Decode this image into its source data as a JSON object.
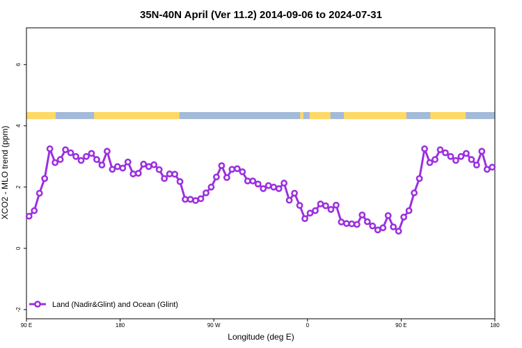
{
  "chart_data": {
    "type": "line",
    "title": "35N-40N April (Ver 11.2)   2014-09-06 to 2024-07-31",
    "xlabel": "Longitude (deg E)",
    "ylabel": "XCO2 - MLO trend (ppm)",
    "xlim": [
      90,
      540
    ],
    "ylim": [
      -2.3,
      7.2
    ],
    "xticks": [
      {
        "value": 90,
        "label": "90 E"
      },
      {
        "value": 180,
        "label": "180"
      },
      {
        "value": 270,
        "label": "90 W"
      },
      {
        "value": 360,
        "label": "0"
      },
      {
        "value": 450,
        "label": "90 E"
      },
      {
        "value": 540,
        "label": "180"
      }
    ],
    "yticks": [
      {
        "value": -2,
        "label": "-2"
      },
      {
        "value": 0,
        "label": "0"
      },
      {
        "value": 2,
        "label": "2"
      },
      {
        "value": 4,
        "label": "4"
      },
      {
        "value": 6,
        "label": "6"
      }
    ],
    "grid": false,
    "legend_position": "bottom-left",
    "land_ocean_strip": {
      "y_range": [
        4.22,
        4.45
      ],
      "land_color": "#ffd966",
      "ocean_color": "#a3bad8",
      "land_segments": [
        [
          90,
          118
        ],
        [
          155,
          237
        ],
        [
          353,
          356
        ],
        [
          362,
          382
        ],
        [
          395,
          455
        ],
        [
          478,
          512
        ]
      ],
      "series": [
        {
          "name": "Land (Nadir&Glint) and Ocean (Glint)",
          "color": "#9b30e0",
          "x": [
            92.5,
            97.5,
            102.5,
            107.5,
            112.5,
            117.5,
            122.5,
            127.5,
            132.5,
            137.5,
            142.5,
            147.5,
            152.5,
            157.5,
            162.5,
            167.5,
            172.5,
            177.5,
            182.5,
            187.5,
            192.5,
            197.5,
            202.5,
            207.5,
            212.5,
            217.5,
            222.5,
            227.5,
            232.5,
            237.5,
            242.5,
            247.5,
            252.5,
            257.5,
            262.5,
            267.5,
            272.5,
            277.5,
            282.5,
            287.5,
            292.5,
            297.5,
            302.5,
            307.5,
            312.5,
            317.5,
            322.5,
            327.5,
            332.5,
            337.5,
            342.5,
            347.5,
            352.5,
            357.5,
            362.5,
            367.5,
            372.5,
            377.5,
            382.5,
            387.5,
            392.5,
            397.5,
            402.5,
            407.5,
            412.5,
            417.5,
            422.5,
            427.5,
            432.5,
            437.5,
            442.5,
            447.5,
            452.5,
            457.5,
            462.5,
            467.5,
            472.5,
            477.5,
            482.5,
            487.5,
            492.5,
            497.5,
            502.5,
            507.5,
            512.5,
            517.5,
            522.5,
            527.5,
            532.5,
            537.5
          ],
          "values": [
            1.05,
            1.23,
            1.8,
            2.28,
            3.25,
            2.8,
            2.9,
            3.22,
            3.12,
            3.0,
            2.87,
            3.0,
            3.1,
            2.9,
            2.72,
            3.17,
            2.58,
            2.67,
            2.62,
            2.82,
            2.43,
            2.45,
            2.75,
            2.67,
            2.73,
            2.57,
            2.28,
            2.43,
            2.42,
            2.18,
            1.6,
            1.6,
            1.56,
            1.62,
            1.81,
            2.0,
            2.33,
            2.7,
            2.31,
            2.58,
            2.6,
            2.5,
            2.2,
            2.2,
            2.1,
            1.95,
            2.05,
            2.0,
            1.95,
            2.13,
            1.57,
            1.8,
            1.4,
            0.97,
            1.15,
            1.23,
            1.45,
            1.39,
            1.27,
            1.41,
            0.86,
            0.81,
            0.8,
            0.78,
            1.09,
            0.87,
            0.73,
            0.6,
            0.67,
            1.07,
            0.7,
            0.56,
            1.02,
            1.23,
            1.81,
            2.28,
            3.25,
            2.8,
            2.9,
            3.22,
            3.12,
            3.0,
            2.87,
            3.0,
            3.1,
            2.9,
            2.72,
            3.17,
            2.58,
            2.65
          ]
        }
      ]
    }
  }
}
